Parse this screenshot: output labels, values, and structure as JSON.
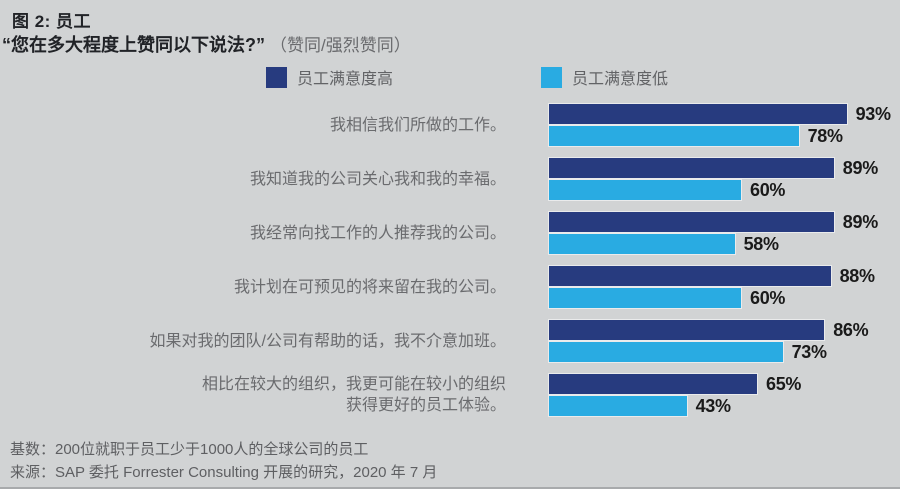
{
  "figure": {
    "title": "图 2: 员工",
    "question": "“您在多大程度上赞同以下说法?”",
    "question_note": "（赞同/强烈赞同）"
  },
  "chart_data": {
    "type": "bar",
    "orientation": "horizontal",
    "xlim": [
      0,
      100
    ],
    "unit": "%",
    "grid": false,
    "legend_position": "top",
    "categories": [
      "我相信我们所做的工作。",
      "我知道我的公司关心我和我的幸福。",
      "我经常向找工作的人推荐我的公司。",
      "我计划在可预见的将来留在我的公司。",
      "如果对我的团队/公司有帮助的话，我不介意加班。",
      "相比在较大的组织，我更可能在较小的组织\n获得更好的员工体验。"
    ],
    "series": [
      {
        "name": "员工满意度高",
        "color": "#273B7F",
        "values": [
          93,
          89,
          89,
          88,
          86,
          65
        ]
      },
      {
        "name": "员工满意度低",
        "color": "#29ABE2",
        "values": [
          78,
          60,
          58,
          60,
          73,
          43
        ]
      }
    ],
    "value_labels": {
      "high": [
        "93%",
        "89%",
        "89%",
        "88%",
        "86%",
        "65%"
      ],
      "low": [
        "78%",
        "60%",
        "58%",
        "60%",
        "73%",
        "43%"
      ]
    }
  },
  "footer": {
    "base": "基数：200位就职于员工少于1000人的全球公司的员工",
    "source": "来源：SAP 委托 Forrester Consulting 开展的研究，2020 年 7 月"
  },
  "colors": {
    "background": "#D1D3D4",
    "series_high": "#273B7F",
    "series_low": "#29ABE2",
    "label_text": "#6A6B6E",
    "value_text": "#1A1A1A"
  }
}
